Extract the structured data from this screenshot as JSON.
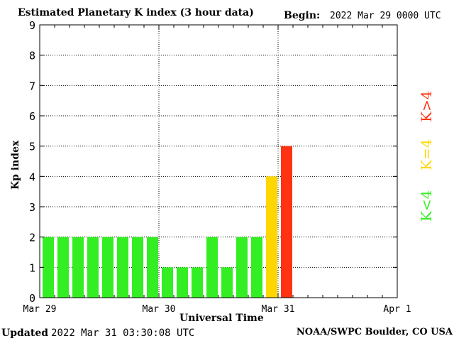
{
  "title": "Estimated Planetary K index (3 hour data)",
  "begin_label": "Begin:",
  "begin_value": "2022 Mar 29 0000 UTC",
  "footer_left_label": "Updated",
  "footer_left_value": "2022 Mar 31 03:30:08 UTC",
  "footer_right": "NOAA/SWPC Boulder, CO USA",
  "legend": {
    "low": "K<4",
    "mid": "K=4",
    "high": "K>4",
    "low_color": "#33ee22",
    "mid_color": "#ffd700",
    "high_color": "#ff3311"
  },
  "chart_data": {
    "type": "bar",
    "xlabel": "Universal Time",
    "ylabel": "Kp index",
    "ylim": [
      0,
      9
    ],
    "yticks": [
      "0",
      "1",
      "2",
      "3",
      "4",
      "5",
      "6",
      "7",
      "8",
      "9"
    ],
    "xticks": [
      "Mar 29",
      "Mar 30",
      "Mar 31",
      "Apr 1"
    ],
    "bar_interval_hours": 3,
    "values": [
      2,
      2,
      2,
      2,
      2,
      2,
      2,
      2,
      1,
      1,
      1,
      2,
      1,
      2,
      2,
      4,
      5
    ],
    "grid": true
  }
}
